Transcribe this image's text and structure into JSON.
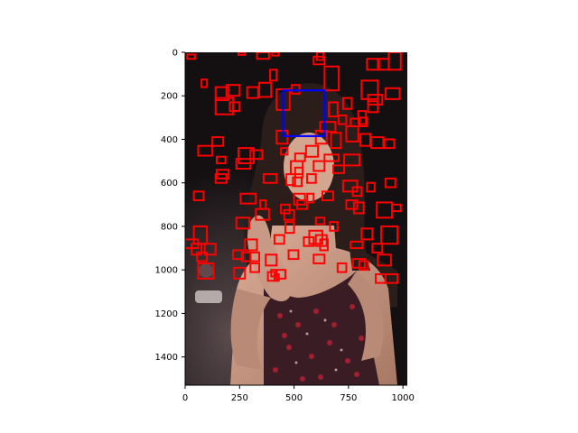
{
  "figure": {
    "image_description_free": true,
    "x_ticks": [
      "0",
      "250",
      "500",
      "750",
      "1000"
    ],
    "y_ticks": [
      "0",
      "200",
      "400",
      "600",
      "800",
      "1000",
      "1200",
      "1400"
    ],
    "x_range": [
      0,
      1020
    ],
    "y_range": [
      0,
      1530
    ],
    "colors": {
      "detection_box": "#ff0000",
      "highlight_box": "#0000ff",
      "background_dark": "#1a1416",
      "skin": "#c89a86",
      "hair": "#2a1d1a",
      "dress": "#3a1c24"
    }
  },
  "boxes": {
    "highlight": {
      "x0": 450,
      "y0": 175,
      "x1": 640,
      "y1": 385
    },
    "detections": [
      [
        10,
        10,
        45,
        30
      ],
      [
        245,
        0,
        275,
        12
      ],
      [
        330,
        0,
        385,
        30
      ],
      [
        400,
        0,
        430,
        15
      ],
      [
        605,
        0,
        635,
        35
      ],
      [
        935,
        0,
        990,
        80
      ],
      [
        590,
        20,
        640,
        55
      ],
      [
        835,
        30,
        890,
        80
      ],
      [
        885,
        30,
        935,
        80
      ],
      [
        640,
        65,
        705,
        175
      ],
      [
        390,
        80,
        420,
        130
      ],
      [
        75,
        125,
        100,
        160
      ],
      [
        340,
        140,
        395,
        205
      ],
      [
        190,
        150,
        250,
        200
      ],
      [
        490,
        150,
        525,
        190
      ],
      [
        140,
        160,
        200,
        220
      ],
      [
        810,
        130,
        885,
        215
      ],
      [
        840,
        195,
        905,
        240
      ],
      [
        920,
        165,
        985,
        215
      ],
      [
        285,
        160,
        335,
        210
      ],
      [
        420,
        170,
        480,
        265
      ],
      [
        205,
        230,
        250,
        270
      ],
      [
        140,
        210,
        220,
        285
      ],
      [
        660,
        230,
        700,
        295
      ],
      [
        725,
        210,
        765,
        260
      ],
      [
        840,
        225,
        885,
        275
      ],
      [
        705,
        290,
        740,
        330
      ],
      [
        795,
        270,
        830,
        330
      ],
      [
        760,
        305,
        800,
        340
      ],
      [
        620,
        320,
        690,
        365
      ],
      [
        800,
        300,
        835,
        340
      ],
      [
        740,
        340,
        795,
        410
      ],
      [
        420,
        360,
        470,
        420
      ],
      [
        600,
        360,
        650,
        420
      ],
      [
        670,
        370,
        715,
        440
      ],
      [
        855,
        390,
        910,
        440
      ],
      [
        125,
        390,
        175,
        430
      ],
      [
        805,
        375,
        850,
        430
      ],
      [
        915,
        400,
        960,
        440
      ],
      [
        60,
        430,
        125,
        475
      ],
      [
        440,
        440,
        470,
        470
      ],
      [
        245,
        440,
        315,
        510
      ],
      [
        300,
        450,
        355,
        490
      ],
      [
        555,
        430,
        610,
        480
      ],
      [
        505,
        465,
        550,
        500
      ],
      [
        730,
        470,
        800,
        520
      ],
      [
        145,
        480,
        185,
        510
      ],
      [
        235,
        490,
        300,
        535
      ],
      [
        640,
        470,
        705,
        500
      ],
      [
        680,
        520,
        730,
        555
      ],
      [
        485,
        500,
        540,
        560
      ],
      [
        590,
        500,
        640,
        545
      ],
      [
        505,
        530,
        540,
        575
      ],
      [
        145,
        540,
        200,
        580
      ],
      [
        140,
        560,
        190,
        600
      ],
      [
        360,
        560,
        420,
        600
      ],
      [
        465,
        560,
        505,
        610
      ],
      [
        560,
        560,
        600,
        600
      ],
      [
        495,
        575,
        535,
        615
      ],
      [
        725,
        590,
        790,
        640
      ],
      [
        770,
        620,
        810,
        660
      ],
      [
        835,
        600,
        870,
        640
      ],
      [
        920,
        580,
        965,
        620
      ],
      [
        40,
        640,
        85,
        680
      ],
      [
        255,
        650,
        325,
        695
      ],
      [
        630,
        640,
        680,
        680
      ],
      [
        500,
        650,
        550,
        700
      ],
      [
        560,
        650,
        590,
        690
      ],
      [
        515,
        680,
        560,
        720
      ],
      [
        345,
        680,
        370,
        720
      ],
      [
        740,
        680,
        790,
        720
      ],
      [
        775,
        690,
        820,
        740
      ],
      [
        880,
        690,
        950,
        760
      ],
      [
        950,
        700,
        990,
        730
      ],
      [
        440,
        700,
        480,
        740
      ],
      [
        455,
        725,
        500,
        770
      ],
      [
        325,
        720,
        385,
        770
      ],
      [
        235,
        760,
        295,
        810
      ],
      [
        600,
        760,
        640,
        790
      ],
      [
        665,
        780,
        700,
        820
      ],
      [
        460,
        780,
        500,
        830
      ],
      [
        810,
        810,
        860,
        860
      ],
      [
        40,
        800,
        100,
        880
      ],
      [
        900,
        800,
        975,
        880
      ],
      [
        410,
        840,
        455,
        880
      ],
      [
        545,
        850,
        590,
        890
      ],
      [
        600,
        840,
        650,
        890
      ],
      [
        620,
        860,
        655,
        910
      ],
      [
        90,
        880,
        140,
        930
      ],
      [
        275,
        860,
        330,
        910
      ],
      [
        570,
        820,
        630,
        880
      ],
      [
        760,
        870,
        815,
        900
      ],
      [
        860,
        880,
        905,
        920
      ],
      [
        0,
        860,
        60,
        900
      ],
      [
        55,
        920,
        100,
        960
      ],
      [
        300,
        920,
        340,
        960
      ],
      [
        370,
        930,
        420,
        980
      ],
      [
        475,
        910,
        520,
        950
      ],
      [
        590,
        930,
        640,
        970
      ],
      [
        770,
        950,
        825,
        990
      ],
      [
        885,
        930,
        945,
        980
      ],
      [
        60,
        970,
        130,
        1040
      ],
      [
        225,
        990,
        275,
        1040
      ],
      [
        420,
        1000,
        460,
        1040
      ],
      [
        920,
        1020,
        975,
        1060
      ],
      [
        875,
        1020,
        920,
        1060
      ],
      [
        800,
        960,
        840,
        1000
      ],
      [
        700,
        970,
        740,
        1010
      ],
      [
        410,
        1020,
        430,
        1050
      ],
      [
        395,
        1000,
        415,
        1030
      ],
      [
        30,
        880,
        75,
        930
      ],
      [
        220,
        910,
        265,
        950
      ],
      [
        260,
        920,
        300,
        960
      ],
      [
        300,
        970,
        340,
        1010
      ],
      [
        380,
        1010,
        420,
        1050
      ]
    ]
  }
}
